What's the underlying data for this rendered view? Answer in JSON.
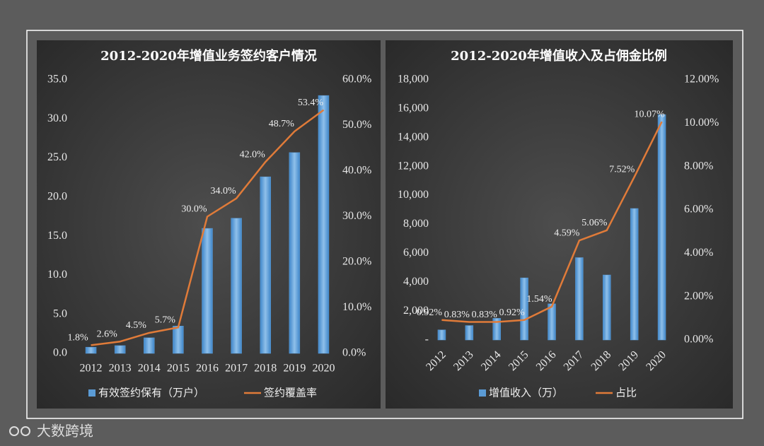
{
  "chart_data": [
    {
      "type": "bar_line",
      "title": "2012-2020年增值业务签约客户情况",
      "categories": [
        "2012",
        "2013",
        "2014",
        "2015",
        "2016",
        "2017",
        "2018",
        "2019",
        "2020"
      ],
      "series": [
        {
          "name": "有效签约保有（万户）",
          "type": "bar",
          "color": "#5b9bd5",
          "axis": "y",
          "values": [
            0.8,
            1.0,
            2.0,
            3.5,
            16.0,
            17.3,
            22.6,
            25.7,
            33.0
          ]
        },
        {
          "name": "签约覆盖率",
          "type": "line",
          "color": "#e07b39",
          "axis": "y2",
          "values": [
            1.8,
            2.6,
            4.5,
            5.7,
            30.0,
            34.0,
            42.0,
            48.7,
            53.4
          ],
          "value_labels": [
            "1.8%",
            "2.6%",
            "4.5%",
            "5.7%",
            "30.0%",
            "34.0%",
            "42.0%",
            "48.7%",
            "53.4%"
          ]
        }
      ],
      "ylim": [
        0,
        35
      ],
      "yticks": [
        {
          "value": 0,
          "label": "0.0"
        },
        {
          "value": 5,
          "label": "5.0"
        },
        {
          "value": 10,
          "label": "10.0"
        },
        {
          "value": 15,
          "label": "15.0"
        },
        {
          "value": 20,
          "label": "20.0"
        },
        {
          "value": 25,
          "label": "25.0"
        },
        {
          "value": 30,
          "label": "30.0"
        },
        {
          "value": 35,
          "label": "35.0"
        }
      ],
      "y2lim": [
        0,
        60
      ],
      "y2ticks": [
        {
          "value": 0,
          "label": "0.0%"
        },
        {
          "value": 10,
          "label": "10.0%"
        },
        {
          "value": 20,
          "label": "20.0%"
        },
        {
          "value": 30,
          "label": "30.0%"
        },
        {
          "value": 40,
          "label": "40.0%"
        },
        {
          "value": 50,
          "label": "50.0%"
        },
        {
          "value": 60,
          "label": "60.0%"
        }
      ],
      "legend": "bottom"
    },
    {
      "type": "bar_line",
      "title": "2012-2020年增值收入及占佣金比例",
      "categories": [
        "2012",
        "2013",
        "2014",
        "2015",
        "2016",
        "2017",
        "2018",
        "2019",
        "2020"
      ],
      "series": [
        {
          "name": "增值收入（万）",
          "type": "bar",
          "color": "#5b9bd5",
          "axis": "y",
          "values": [
            700,
            1000,
            1500,
            4300,
            2500,
            5700,
            4500,
            9100,
            15600
          ]
        },
        {
          "name": "占比",
          "type": "line",
          "color": "#e07b39",
          "axis": "y2",
          "values": [
            0.92,
            0.83,
            0.83,
            0.92,
            1.54,
            4.59,
            5.06,
            7.52,
            10.07
          ],
          "value_labels": [
            "0.92%",
            "0.83%",
            "0.83%",
            "0.92%",
            "1.54%",
            "4.59%",
            "5.06%",
            "7.52%",
            "10.07%"
          ]
        }
      ],
      "ylim": [
        0,
        18000
      ],
      "yticks": [
        {
          "value": 0,
          "label": "-"
        },
        {
          "value": 2000,
          "label": "2,000"
        },
        {
          "value": 4000,
          "label": "4,000"
        },
        {
          "value": 6000,
          "label": "6,000"
        },
        {
          "value": 8000,
          "label": "8,000"
        },
        {
          "value": 10000,
          "label": "10,000"
        },
        {
          "value": 12000,
          "label": "12,000"
        },
        {
          "value": 14000,
          "label": "14,000"
        },
        {
          "value": 16000,
          "label": "16,000"
        },
        {
          "value": 18000,
          "label": "18,000"
        }
      ],
      "y2lim": [
        0,
        12
      ],
      "y2ticks": [
        {
          "value": 0,
          "label": "0.00%"
        },
        {
          "value": 2,
          "label": "2.00%"
        },
        {
          "value": 4,
          "label": "4.00%"
        },
        {
          "value": 6,
          "label": "6.00%"
        },
        {
          "value": 8,
          "label": "8.00%"
        },
        {
          "value": 10,
          "label": "10.00%"
        },
        {
          "value": 12,
          "label": "12.00%"
        }
      ],
      "legend": "bottom",
      "rotate_categories": true
    }
  ],
  "watermark": "大数跨境"
}
